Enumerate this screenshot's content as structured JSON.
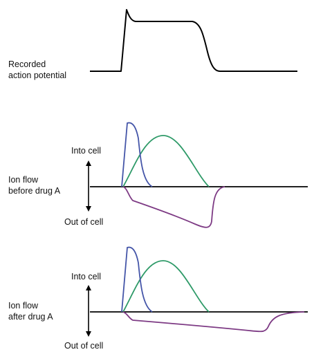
{
  "recorded": {
    "label_line1": "Recorded",
    "label_line2": "action potential"
  },
  "before": {
    "into_label": "Into cell",
    "ion_label_line1": "Ion flow",
    "ion_label_line2": "before drug A",
    "out_label": "Out of cell"
  },
  "after": {
    "into_label": "Into cell",
    "ion_label_line1": "Ion flow",
    "ion_label_line2": "after drug A",
    "out_label": "Out of cell"
  },
  "colors": {
    "action_potential": "#000000",
    "fast_inward_current": "#4455a8",
    "slow_inward_current": "#2e9a68",
    "outward_current": "#7d3a84",
    "axis": "#000000"
  }
}
